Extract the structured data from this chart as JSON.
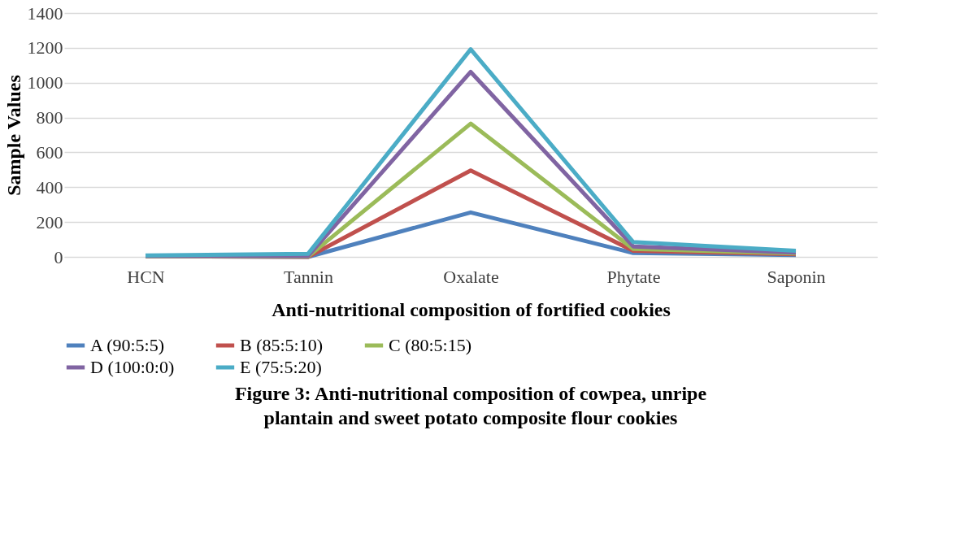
{
  "chart_data": {
    "type": "line",
    "title": "Figure 3: Anti-nutritional composition of cowpea, unripe plantain and sweet potato composite flour cookies",
    "xlabel": "Anti-nutritional composition of fortified cookies",
    "ylabel": "Sample Values",
    "categories": [
      "HCN",
      "Tannin",
      "Oxalate",
      "Phytate",
      "Saponin"
    ],
    "series": [
      {
        "name": "A (90:5:5)",
        "color": "#4f81bd",
        "values": [
          3,
          0,
          255,
          22,
          10
        ]
      },
      {
        "name": "B (85:5:10)",
        "color": "#c0504d",
        "values": [
          3,
          0,
          496,
          35,
          15
        ]
      },
      {
        "name": "C (80:5:15)",
        "color": "#9bbb59",
        "values": [
          4,
          2,
          765,
          45,
          20
        ]
      },
      {
        "name": "D (100:0:0)",
        "color": "#8064a2",
        "values": [
          5,
          5,
          1062,
          60,
          25
        ]
      },
      {
        "name": "E (75:5:20)",
        "color": "#4bacc6",
        "values": [
          8,
          18,
          1192,
          85,
          35
        ]
      }
    ],
    "ylim": [
      0,
      1400
    ],
    "yticks": [
      0,
      200,
      400,
      600,
      800,
      1000,
      1200,
      1400
    ],
    "grid": "y",
    "legend": "bottom",
    "marker": "none",
    "line_style": "solid"
  }
}
